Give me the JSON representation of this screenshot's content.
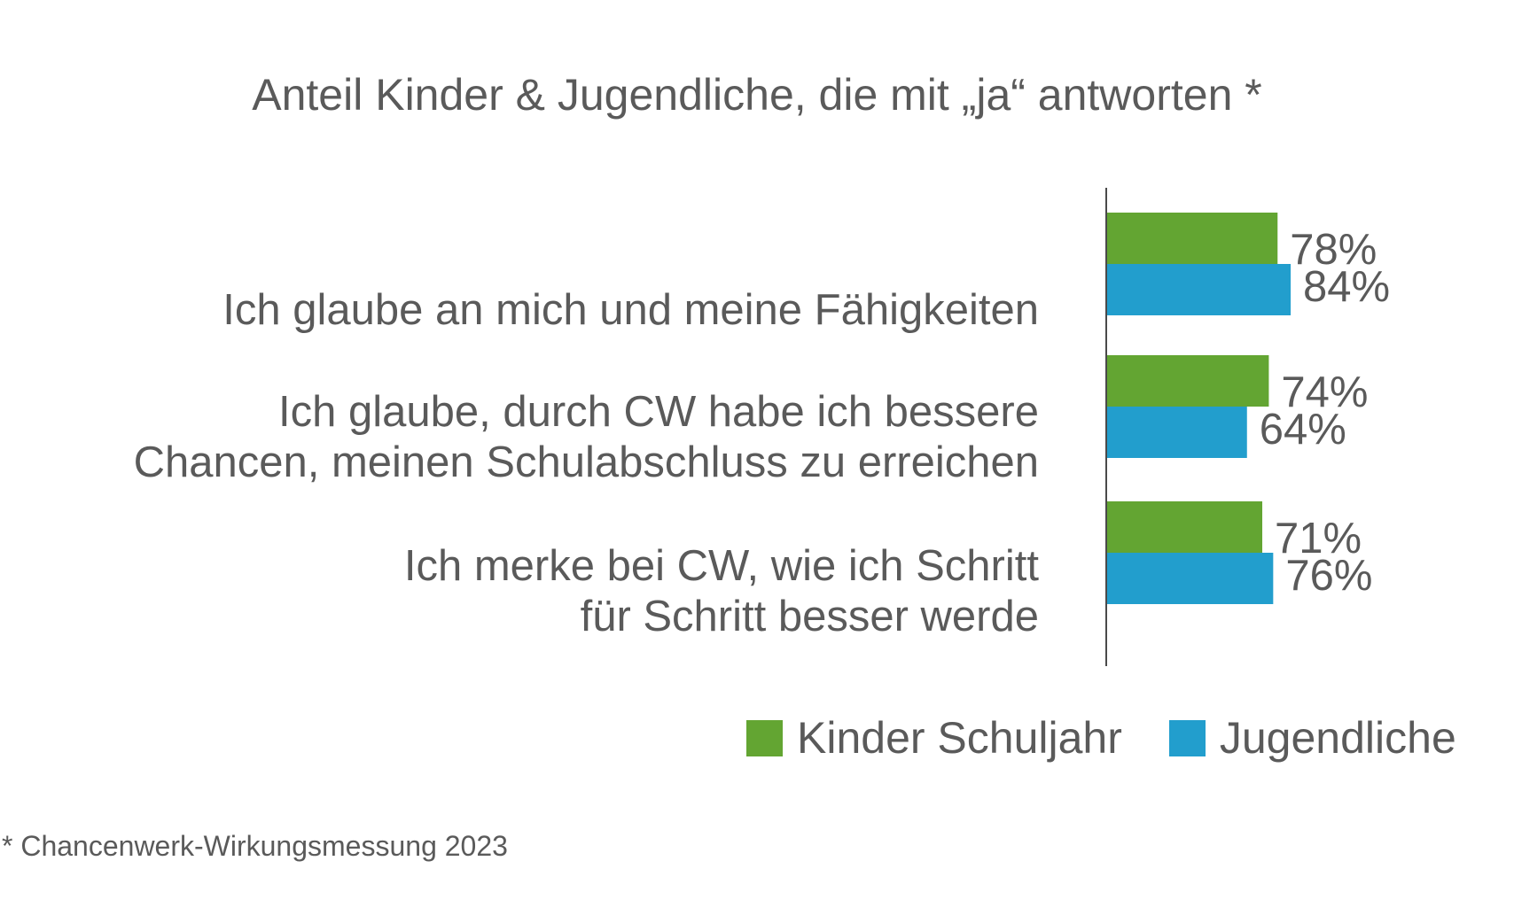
{
  "chart_data": {
    "type": "bar",
    "orientation": "horizontal",
    "title": "Anteil Kinder & Jugendliche, die mit „ja“ antworten *",
    "categories": [
      [
        "Ich glaube an mich und meine Fähigkeiten"
      ],
      [
        "Ich glaube, durch CW habe ich bessere",
        "Chancen, meinen Schulabschluss zu erreichen"
      ],
      [
        "Ich merke bei CW, wie ich Schritt",
        "für Schritt besser werde"
      ]
    ],
    "series": [
      {
        "name": "Kinder Schuljahr",
        "color": "#63a532",
        "values": [
          78,
          74,
          71
        ],
        "labels": [
          "78%",
          "74%",
          "71%"
        ]
      },
      {
        "name": "Jugendliche",
        "color": "#229ecd",
        "values": [
          84,
          64,
          76
        ],
        "labels": [
          "84%",
          "64%",
          "76%"
        ]
      }
    ],
    "xlabel": "",
    "ylabel": "",
    "xlim": [
      0,
      100
    ],
    "grid": false,
    "legend": "bottom-right",
    "unit": "%"
  },
  "footnote": "* Chancenwerk-Wirkungsmessung 2023",
  "colors": {
    "text": "#5a5a5a",
    "axis": "#4a4a4a"
  }
}
